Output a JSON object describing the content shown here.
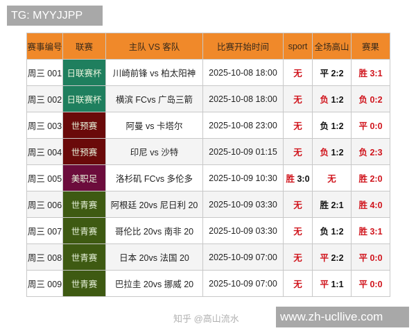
{
  "overlay": {
    "tg_label": "TG: MYYJJPP",
    "site_label": "www.zh-ucllive.com",
    "watermark": "知乎 @高山流水"
  },
  "colors": {
    "header": "#f0892a",
    "red": "#d0141c",
    "jlc": "#1f7f5e",
    "wcq": "#6a0a0a",
    "mls": "#6c0c3c",
    "u20": "#3e5a12"
  },
  "table": {
    "headers": [
      "赛事编号",
      "联赛",
      "主队 VS 客队",
      "比赛开始时间",
      "sport",
      "全场高山",
      "赛果"
    ],
    "rows": [
      {
        "id": "周三 001",
        "league": "日联赛杯",
        "league_color": "#1f7f5e",
        "match": "川崎前锋 vs 柏太阳神",
        "time": "2025-10-08 18:00",
        "sport": {
          "label": "无",
          "score": "",
          "label_red": true,
          "score_red": true
        },
        "pick": {
          "label": "平",
          "score": "2:2",
          "label_red": false,
          "score_red": false
        },
        "result": {
          "label": "胜",
          "score": "3:1",
          "label_red": true,
          "score_red": true
        }
      },
      {
        "id": "周三 002",
        "league": "日联赛杯",
        "league_color": "#1f7f5e",
        "match": "横滨 FCvs 广岛三箭",
        "time": "2025-10-08 18:00",
        "sport": {
          "label": "无",
          "score": "",
          "label_red": true,
          "score_red": true
        },
        "pick": {
          "label": "负",
          "score": "1:2",
          "label_red": true,
          "score_red": false
        },
        "result": {
          "label": "负",
          "score": "0:2",
          "label_red": true,
          "score_red": true
        }
      },
      {
        "id": "周三 003",
        "league": "世预赛",
        "league_color": "#6a0a0a",
        "match": "阿曼 vs 卡塔尔",
        "time": "2025-10-08 23:00",
        "sport": {
          "label": "无",
          "score": "",
          "label_red": true,
          "score_red": true
        },
        "pick": {
          "label": "负",
          "score": "1:2",
          "label_red": false,
          "score_red": false
        },
        "result": {
          "label": "平",
          "score": "0:0",
          "label_red": true,
          "score_red": true
        }
      },
      {
        "id": "周三 004",
        "league": "世预赛",
        "league_color": "#6a0a0a",
        "match": "印尼 vs 沙特",
        "time": "2025-10-09 01:15",
        "sport": {
          "label": "无",
          "score": "",
          "label_red": true,
          "score_red": true
        },
        "pick": {
          "label": "负",
          "score": "1:2",
          "label_red": true,
          "score_red": false
        },
        "result": {
          "label": "负",
          "score": "2:3",
          "label_red": true,
          "score_red": true
        }
      },
      {
        "id": "周三 005",
        "league": "美职足",
        "league_color": "#6c0c3c",
        "match": "洛杉矶 FCvs 多伦多",
        "time": "2025-10-09 10:30",
        "sport": {
          "label": "胜",
          "score": "3:0",
          "label_red": true,
          "score_red": false
        },
        "pick": {
          "label": "无",
          "score": "",
          "label_red": true,
          "score_red": true
        },
        "result": {
          "label": "胜",
          "score": "2:0",
          "label_red": true,
          "score_red": true
        }
      },
      {
        "id": "周三 006",
        "league": "世青赛",
        "league_color": "#3e5a12",
        "match": "阿根廷 20vs 尼日利 20",
        "time": "2025-10-09 03:30",
        "sport": {
          "label": "无",
          "score": "",
          "label_red": true,
          "score_red": true
        },
        "pick": {
          "label": "胜",
          "score": "2:1",
          "label_red": false,
          "score_red": false
        },
        "result": {
          "label": "胜",
          "score": "4:0",
          "label_red": true,
          "score_red": true
        }
      },
      {
        "id": "周三 007",
        "league": "世青赛",
        "league_color": "#3e5a12",
        "match": "哥伦比 20vs 南非 20",
        "time": "2025-10-09 03:30",
        "sport": {
          "label": "无",
          "score": "",
          "label_red": true,
          "score_red": true
        },
        "pick": {
          "label": "负",
          "score": "1:2",
          "label_red": false,
          "score_red": false
        },
        "result": {
          "label": "胜",
          "score": "3:1",
          "label_red": true,
          "score_red": true
        }
      },
      {
        "id": "周三 008",
        "league": "世青赛",
        "league_color": "#3e5a12",
        "match": "日本 20vs 法国 20",
        "time": "2025-10-09 07:00",
        "sport": {
          "label": "无",
          "score": "",
          "label_red": true,
          "score_red": true
        },
        "pick": {
          "label": "平",
          "score": "2:2",
          "label_red": true,
          "score_red": false
        },
        "result": {
          "label": "平",
          "score": "0:0",
          "label_red": true,
          "score_red": true
        }
      },
      {
        "id": "周三 009",
        "league": "世青赛",
        "league_color": "#3e5a12",
        "match": "巴拉圭 20vs 挪威 20",
        "time": "2025-10-09 07:00",
        "sport": {
          "label": "无",
          "score": "",
          "label_red": true,
          "score_red": true
        },
        "pick": {
          "label": "平",
          "score": "1:1",
          "label_red": true,
          "score_red": false
        },
        "result": {
          "label": "平",
          "score": "0:0",
          "label_red": true,
          "score_red": true
        }
      }
    ]
  }
}
